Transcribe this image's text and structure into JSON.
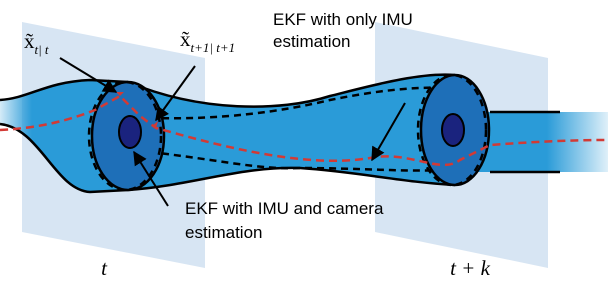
{
  "labels": [
    {
      "base": "x̃",
      "sub": "t| t"
    },
    {
      "base": "x̃",
      "sub": "t+1| t+1"
    }
  ],
  "annotations": [
    {
      "lines": [
        "EKF with only IMU",
        "estimation"
      ]
    },
    {
      "lines": [
        "EKF with IMU and camera",
        "estimation"
      ]
    }
  ],
  "axis_labels": [
    "t",
    "t + k"
  ]
}
